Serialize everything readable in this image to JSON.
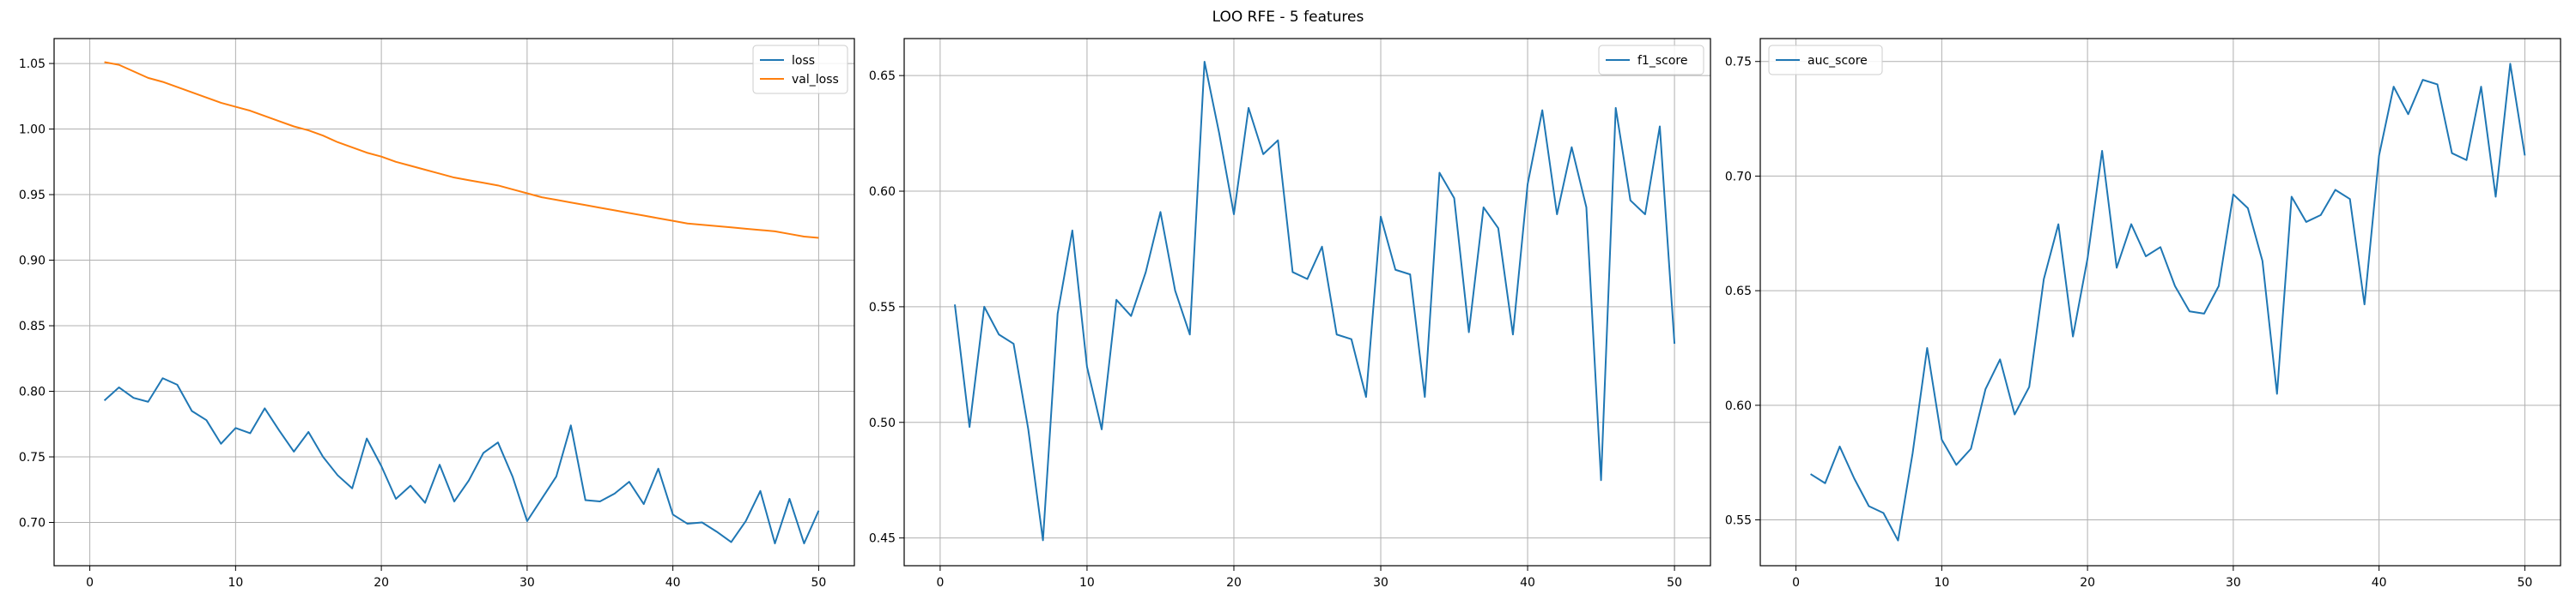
{
  "figure": {
    "title": "LOO RFE - 5 features"
  },
  "colors": {
    "c0": "#1f77b4",
    "c1": "#ff7f0e",
    "grid": "#b0b0b0",
    "axes": "#000000"
  },
  "chart_data": [
    {
      "type": "line",
      "title": "",
      "xlabel": "",
      "ylabel": "",
      "xlim": [
        -2.45,
        52.45
      ],
      "ylim": [
        0.667,
        1.069
      ],
      "xticks": [
        0,
        10,
        20,
        30,
        40,
        50
      ],
      "yticks": [
        0.7,
        0.75,
        0.8,
        0.85,
        0.9,
        0.95,
        1.0,
        1.05
      ],
      "xtick_labels": [
        "0",
        "10",
        "20",
        "30",
        "40",
        "50"
      ],
      "ytick_labels": [
        "0.70",
        "0.75",
        "0.80",
        "0.85",
        "0.90",
        "0.95",
        "1.00",
        "1.05"
      ],
      "grid": true,
      "legend": "top-right",
      "x": [
        1,
        2,
        3,
        4,
        5,
        6,
        7,
        8,
        9,
        10,
        11,
        12,
        13,
        14,
        15,
        16,
        17,
        18,
        19,
        20,
        21,
        22,
        23,
        24,
        25,
        26,
        27,
        28,
        29,
        30,
        31,
        32,
        33,
        34,
        35,
        36,
        37,
        38,
        39,
        40,
        41,
        42,
        43,
        44,
        45,
        46,
        47,
        48,
        49,
        50
      ],
      "series": [
        {
          "name": "loss",
          "color": "#1f77b4",
          "values": [
            0.793,
            0.803,
            0.795,
            0.792,
            0.81,
            0.805,
            0.785,
            0.778,
            0.76,
            0.772,
            0.768,
            0.787,
            0.77,
            0.754,
            0.769,
            0.75,
            0.736,
            0.726,
            0.764,
            0.743,
            0.718,
            0.728,
            0.715,
            0.744,
            0.716,
            0.732,
            0.753,
            0.761,
            0.735,
            0.701,
            0.718,
            0.735,
            0.774,
            0.717,
            0.716,
            0.722,
            0.731,
            0.714,
            0.741,
            0.706,
            0.699,
            0.7,
            0.693,
            0.685,
            0.701,
            0.724,
            0.684,
            0.718,
            0.684,
            0.709
          ]
        },
        {
          "name": "val_loss",
          "color": "#ff7f0e",
          "values": [
            1.051,
            1.049,
            1.044,
            1.039,
            1.036,
            1.032,
            1.028,
            1.024,
            1.02,
            1.017,
            1.014,
            1.01,
            1.006,
            1.002,
            0.999,
            0.995,
            0.99,
            0.986,
            0.982,
            0.979,
            0.975,
            0.972,
            0.969,
            0.966,
            0.963,
            0.961,
            0.959,
            0.957,
            0.954,
            0.951,
            0.948,
            0.946,
            0.944,
            0.942,
            0.94,
            0.938,
            0.936,
            0.934,
            0.932,
            0.93,
            0.928,
            0.927,
            0.926,
            0.925,
            0.924,
            0.923,
            0.922,
            0.92,
            0.918,
            0.917
          ]
        }
      ]
    },
    {
      "type": "line",
      "title": "",
      "xlabel": "",
      "ylabel": "",
      "xlim": [
        -2.45,
        52.45
      ],
      "ylim": [
        0.438,
        0.666
      ],
      "xticks": [
        0,
        10,
        20,
        30,
        40,
        50
      ],
      "yticks": [
        0.45,
        0.5,
        0.55,
        0.6,
        0.65
      ],
      "xtick_labels": [
        "0",
        "10",
        "20",
        "30",
        "40",
        "50"
      ],
      "ytick_labels": [
        "0.45",
        "0.50",
        "0.55",
        "0.60",
        "0.65"
      ],
      "grid": true,
      "legend": "top-right",
      "x": [
        1,
        2,
        3,
        4,
        5,
        6,
        7,
        8,
        9,
        10,
        11,
        12,
        13,
        14,
        15,
        16,
        17,
        18,
        19,
        20,
        21,
        22,
        23,
        24,
        25,
        26,
        27,
        28,
        29,
        30,
        31,
        32,
        33,
        34,
        35,
        36,
        37,
        38,
        39,
        40,
        41,
        42,
        43,
        44,
        45,
        46,
        47,
        48,
        49,
        50
      ],
      "series": [
        {
          "name": "f1_score",
          "color": "#1f77b4",
          "values": [
            0.551,
            0.498,
            0.55,
            0.538,
            0.534,
            0.497,
            0.449,
            0.547,
            0.583,
            0.524,
            0.497,
            0.553,
            0.546,
            0.565,
            0.591,
            0.557,
            0.538,
            0.656,
            0.625,
            0.59,
            0.636,
            0.616,
            0.622,
            0.565,
            0.562,
            0.576,
            0.538,
            0.536,
            0.511,
            0.589,
            0.566,
            0.564,
            0.511,
            0.608,
            0.597,
            0.539,
            0.593,
            0.584,
            0.538,
            0.603,
            0.635,
            0.59,
            0.619,
            0.593,
            0.475,
            0.636,
            0.596,
            0.59,
            0.628,
            0.534
          ]
        }
      ]
    },
    {
      "type": "line",
      "title": "",
      "xlabel": "",
      "ylabel": "",
      "xlim": [
        -2.45,
        52.45
      ],
      "ylim": [
        0.53,
        0.76
      ],
      "xticks": [
        0,
        10,
        20,
        30,
        40,
        50
      ],
      "yticks": [
        0.55,
        0.6,
        0.65,
        0.7,
        0.75
      ],
      "xtick_labels": [
        "0",
        "10",
        "20",
        "30",
        "40",
        "50"
      ],
      "ytick_labels": [
        "0.55",
        "0.60",
        "0.65",
        "0.70",
        "0.75"
      ],
      "grid": true,
      "legend": "top-left",
      "x": [
        1,
        2,
        3,
        4,
        5,
        6,
        7,
        8,
        9,
        10,
        11,
        12,
        13,
        14,
        15,
        16,
        17,
        18,
        19,
        20,
        21,
        22,
        23,
        24,
        25,
        26,
        27,
        28,
        29,
        30,
        31,
        32,
        33,
        34,
        35,
        36,
        37,
        38,
        39,
        40,
        41,
        42,
        43,
        44,
        45,
        46,
        47,
        48,
        49,
        50
      ],
      "series": [
        {
          "name": "auc_score",
          "color": "#1f77b4",
          "values": [
            0.57,
            0.566,
            0.582,
            0.568,
            0.556,
            0.553,
            0.541,
            0.579,
            0.625,
            0.585,
            0.574,
            0.581,
            0.607,
            0.62,
            0.596,
            0.608,
            0.655,
            0.679,
            0.63,
            0.664,
            0.711,
            0.66,
            0.679,
            0.665,
            0.669,
            0.652,
            0.641,
            0.64,
            0.652,
            0.692,
            0.686,
            0.663,
            0.605,
            0.691,
            0.68,
            0.683,
            0.694,
            0.69,
            0.644,
            0.709,
            0.739,
            0.727,
            0.742,
            0.74,
            0.71,
            0.707,
            0.739,
            0.691,
            0.749,
            0.709
          ]
        }
      ]
    }
  ]
}
